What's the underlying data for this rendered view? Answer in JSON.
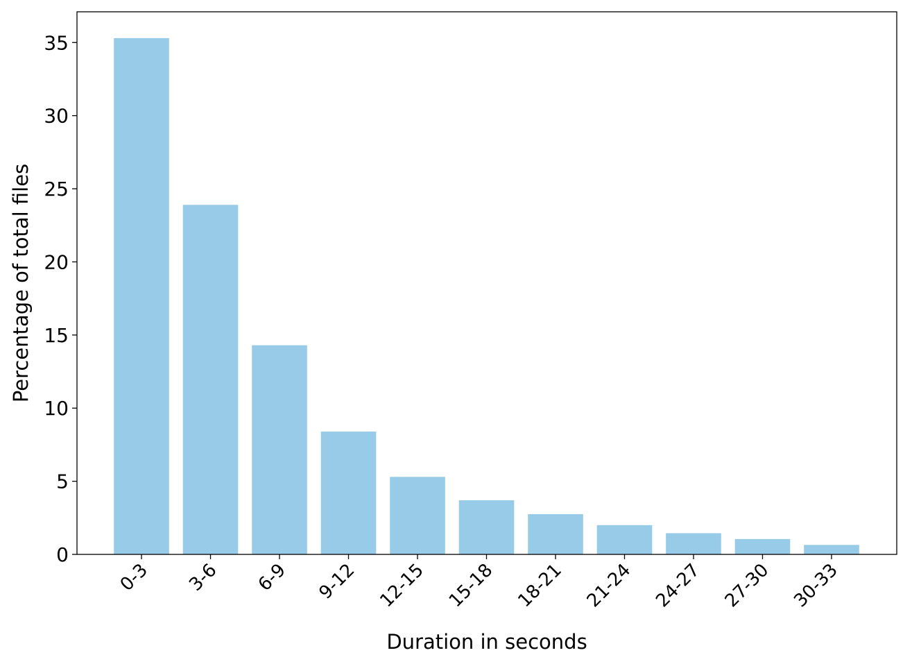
{
  "chart_data": {
    "type": "bar",
    "title": "",
    "xlabel": "Duration in seconds",
    "ylabel": "Percentage of total files",
    "categories": [
      "0-3",
      "3-6",
      "6-9",
      "9-12",
      "12-15",
      "15-18",
      "18-21",
      "21-24",
      "24-27",
      "27-30",
      "30-33"
    ],
    "values": [
      35.3,
      23.9,
      14.3,
      8.4,
      5.3,
      3.7,
      2.75,
      2.0,
      1.45,
      1.05,
      0.65
    ],
    "ylim": [
      0,
      37.1
    ],
    "yticks": [
      0,
      5,
      10,
      15,
      20,
      25,
      30,
      35
    ],
    "grid": false,
    "legend": "none",
    "bar_color": "#97cbe8",
    "xtick_rotation": 45
  }
}
